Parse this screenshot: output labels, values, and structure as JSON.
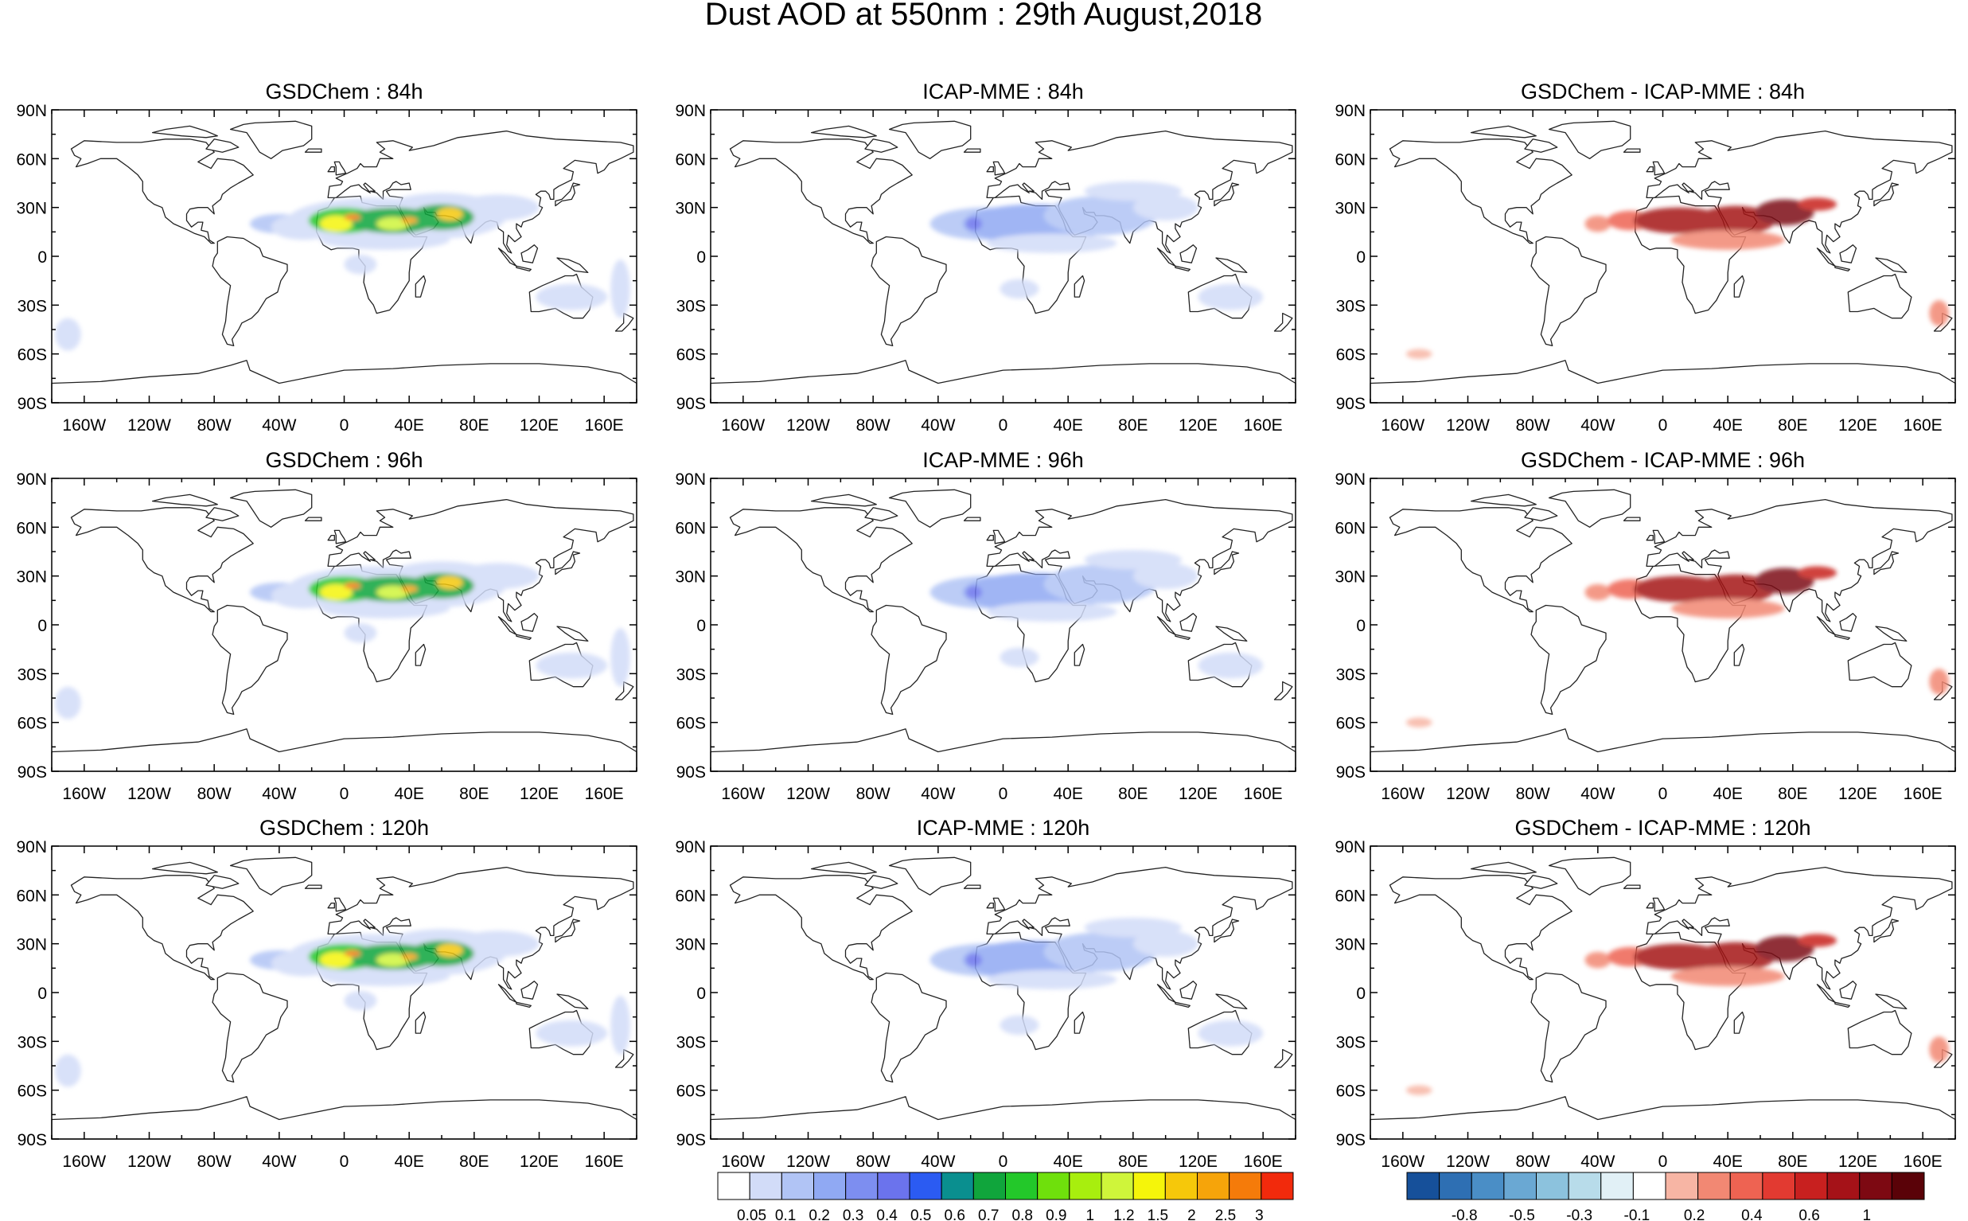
{
  "title": "Dust AOD at 550nm : 29th August,2018",
  "chart_data": [
    {
      "type": "heatmap",
      "title": "GSDChem : 84h",
      "xticks": [
        "160W",
        "120W",
        "80W",
        "40W",
        "0",
        "40E",
        "80E",
        "120E",
        "160E"
      ],
      "yticks": [
        "90N",
        "60N",
        "30N",
        "0",
        "30S",
        "60S",
        "90S"
      ],
      "xlim": [
        -180,
        180
      ],
      "ylim": [
        -90,
        90
      ],
      "colorbar": "aod",
      "peak_value": 2.5
    },
    {
      "type": "heatmap",
      "title": "ICAP-MME : 84h",
      "xticks": [
        "160W",
        "120W",
        "80W",
        "40W",
        "0",
        "40E",
        "80E",
        "120E",
        "160E"
      ],
      "yticks": [
        "90N",
        "60N",
        "30N",
        "0",
        "30S",
        "60S",
        "90S"
      ],
      "xlim": [
        -180,
        180
      ],
      "ylim": [
        -90,
        90
      ],
      "colorbar": "aod",
      "peak_value": 0.6
    },
    {
      "type": "heatmap",
      "title": "GSDChem - ICAP-MME : 84h",
      "xticks": [
        "160W",
        "120W",
        "80W",
        "40W",
        "0",
        "40E",
        "80E",
        "120E",
        "160E"
      ],
      "yticks": [
        "90N",
        "60N",
        "30N",
        "0",
        "30S",
        "60S",
        "90S"
      ],
      "xlim": [
        -180,
        180
      ],
      "ylim": [
        -90,
        90
      ],
      "colorbar": "diff",
      "peak_value": 1.0
    },
    {
      "type": "heatmap",
      "title": "GSDChem : 96h",
      "xticks": [
        "160W",
        "120W",
        "80W",
        "40W",
        "0",
        "40E",
        "80E",
        "120E",
        "160E"
      ],
      "yticks": [
        "90N",
        "60N",
        "30N",
        "0",
        "30S",
        "60S",
        "90S"
      ],
      "xlim": [
        -180,
        180
      ],
      "ylim": [
        -90,
        90
      ],
      "colorbar": "aod",
      "peak_value": 2.5
    },
    {
      "type": "heatmap",
      "title": "ICAP-MME : 96h",
      "xticks": [
        "160W",
        "120W",
        "80W",
        "40W",
        "0",
        "40E",
        "80E",
        "120E",
        "160E"
      ],
      "yticks": [
        "90N",
        "60N",
        "30N",
        "0",
        "30S",
        "60S",
        "90S"
      ],
      "xlim": [
        -180,
        180
      ],
      "ylim": [
        -90,
        90
      ],
      "colorbar": "aod",
      "peak_value": 0.6
    },
    {
      "type": "heatmap",
      "title": "GSDChem - ICAP-MME : 96h",
      "xticks": [
        "160W",
        "120W",
        "80W",
        "40W",
        "0",
        "40E",
        "80E",
        "120E",
        "160E"
      ],
      "yticks": [
        "90N",
        "60N",
        "30N",
        "0",
        "30S",
        "60S",
        "90S"
      ],
      "xlim": [
        -180,
        180
      ],
      "ylim": [
        -90,
        90
      ],
      "colorbar": "diff",
      "peak_value": 1.0
    },
    {
      "type": "heatmap",
      "title": "GSDChem : 120h",
      "xticks": [
        "160W",
        "120W",
        "80W",
        "40W",
        "0",
        "40E",
        "80E",
        "120E",
        "160E"
      ],
      "yticks": [
        "90N",
        "60N",
        "30N",
        "0",
        "30S",
        "60S",
        "90S"
      ],
      "xlim": [
        -180,
        180
      ],
      "ylim": [
        -90,
        90
      ],
      "colorbar": "aod",
      "peak_value": 2.5
    },
    {
      "type": "heatmap",
      "title": "ICAP-MME : 120h",
      "xticks": [
        "160W",
        "120W",
        "80W",
        "40W",
        "0",
        "40E",
        "80E",
        "120E",
        "160E"
      ],
      "yticks": [
        "90N",
        "60N",
        "30N",
        "0",
        "30S",
        "60S",
        "90S"
      ],
      "xlim": [
        -180,
        180
      ],
      "ylim": [
        -90,
        90
      ],
      "colorbar": "aod",
      "peak_value": 0.6
    },
    {
      "type": "heatmap",
      "title": "GSDChem - ICAP-MME : 120h",
      "xticks": [
        "160W",
        "120W",
        "80W",
        "40W",
        "0",
        "40E",
        "80E",
        "120E",
        "160E"
      ],
      "yticks": [
        "90N",
        "60N",
        "30N",
        "0",
        "30S",
        "60S",
        "90S"
      ],
      "xlim": [
        -180,
        180
      ],
      "ylim": [
        -90,
        90
      ],
      "colorbar": "diff",
      "peak_value": 1.0
    }
  ],
  "colorbars": {
    "aod": {
      "labels": [
        "0.05",
        "0.1",
        "0.2",
        "0.3",
        "0.4",
        "0.5",
        "0.6",
        "0.7",
        "0.8",
        "0.9",
        "1",
        "1.2",
        "1.5",
        "2",
        "2.5",
        "3"
      ],
      "colors": [
        "#ffffff",
        "#d2dcf8",
        "#b1c4f5",
        "#90a9f3",
        "#7d8ef0",
        "#6b73ed",
        "#2b5bf2",
        "#0a8f8f",
        "#10a53c",
        "#23c82a",
        "#6fe00c",
        "#a8ee0e",
        "#cff53a",
        "#f5f50a",
        "#f6c80a",
        "#f6a40a",
        "#f57b0a",
        "#f22a0c"
      ]
    },
    "diff": {
      "labels": [
        "-0.8",
        "-0.5",
        "-0.3",
        "-0.1",
        "0.2",
        "0.4",
        "0.6",
        "1"
      ],
      "colors": [
        "#16509a",
        "#2e6fb3",
        "#4a8ec6",
        "#6aa8d3",
        "#8cc2dd",
        "#b8dcea",
        "#e1f0f6",
        "#ffffff",
        "#f7b5a4",
        "#f28873",
        "#ee6352",
        "#e23a31",
        "#c8201f",
        "#a51218",
        "#7d0912",
        "#5a0208"
      ]
    }
  }
}
